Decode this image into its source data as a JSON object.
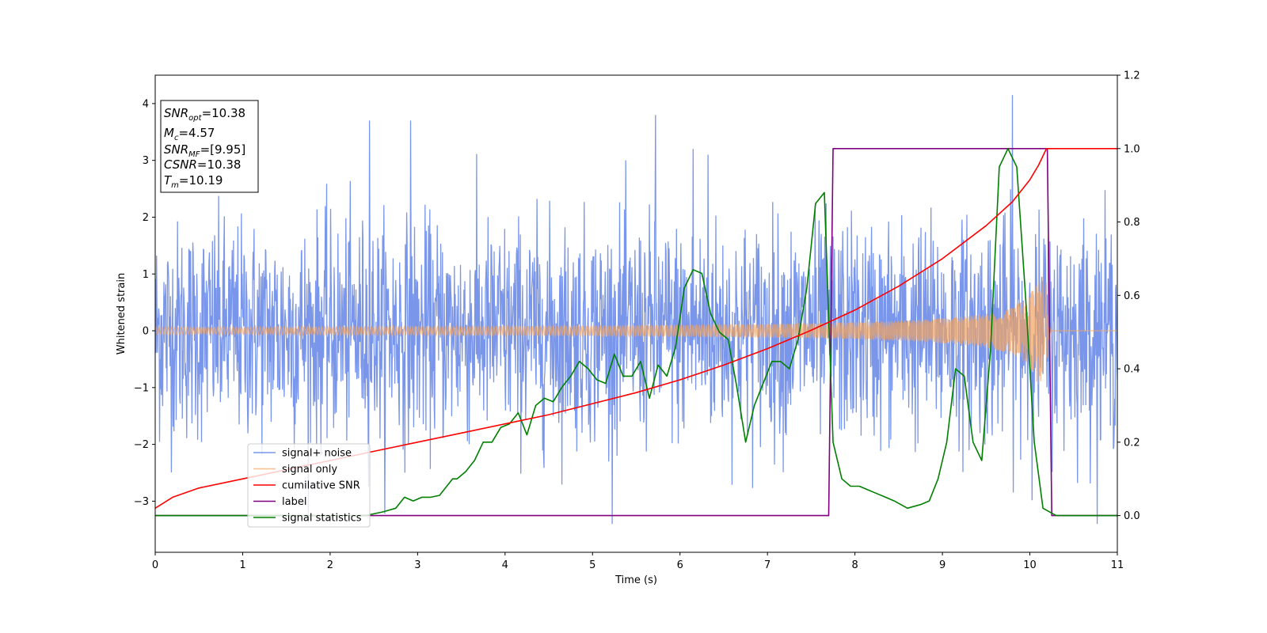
{
  "chart_data": {
    "type": "line",
    "title": "",
    "xlabel": "Time (s)",
    "ylabel": "Whitened strain",
    "xlim": [
      0,
      11
    ],
    "ylim": [
      -3.9,
      4.5
    ],
    "y2lim": [
      -0.1,
      1.2
    ],
    "xticks": [
      "0",
      "1",
      "2",
      "3",
      "4",
      "5",
      "6",
      "7",
      "8",
      "9",
      "10",
      "11"
    ],
    "yticks": [
      "−3",
      "−2",
      "−1",
      "0",
      "1",
      "2",
      "3",
      "4"
    ],
    "y2ticks": [
      "0.0",
      "0.2",
      "0.4",
      "0.6",
      "0.8",
      "1.0",
      "1.2"
    ],
    "grid": false,
    "legend_position": "lower-left",
    "annotation": {
      "lines": [
        {
          "main": "SNR",
          "sub": "opt",
          "value": "=10.38"
        },
        {
          "main": "M",
          "sub": "c",
          "value": "=4.57"
        },
        {
          "main": "SNR",
          "sub": "MF",
          "value": "=[9.95]"
        },
        {
          "main": "CSNR",
          "sub": "",
          "value": "=10.38"
        },
        {
          "main": "T",
          "sub": "m",
          "value": "=10.19"
        }
      ]
    },
    "series": [
      {
        "name": "signal+ noise",
        "axis": "left",
        "color": "#4169e1",
        "style": "noise",
        "sigma": 1.0,
        "peak_times": [
          2.45,
          2.92,
          5.72,
          6.15,
          6.32,
          9.8
        ],
        "peak_values": [
          3.7,
          3.7,
          3.8,
          3.2,
          3.1,
          4.15
        ]
      },
      {
        "name": "signal only",
        "axis": "left",
        "color": "#f4a460",
        "style": "chirp",
        "merger_time": 10.19,
        "start_amplitude": 0.06,
        "peak_amplitude": 0.95
      },
      {
        "name": "cumilative SNR",
        "axis": "right",
        "color": "#ff0000",
        "x": [
          0,
          0.2,
          0.5,
          1,
          1.5,
          2,
          2.5,
          3,
          3.5,
          4,
          4.5,
          5,
          5.5,
          6,
          6.5,
          7,
          7.5,
          8,
          8.5,
          9,
          9.5,
          9.8,
          10,
          10.1,
          10.19,
          11
        ],
        "y": [
          0.02,
          0.05,
          0.075,
          0.1,
          0.125,
          0.15,
          0.175,
          0.2,
          0.225,
          0.25,
          0.275,
          0.305,
          0.335,
          0.37,
          0.41,
          0.455,
          0.505,
          0.56,
          0.625,
          0.7,
          0.79,
          0.855,
          0.915,
          0.955,
          1.0,
          1.0
        ]
      },
      {
        "name": "label",
        "axis": "right",
        "color": "#800080",
        "x": [
          0,
          7.7,
          7.75,
          10.2,
          10.25,
          11
        ],
        "y": [
          0,
          0,
          1,
          1,
          0,
          0
        ]
      },
      {
        "name": "signal statistics",
        "axis": "right",
        "color": "#008000",
        "x": [
          0,
          2.4,
          2.6,
          2.75,
          2.85,
          2.95,
          3.05,
          3.15,
          3.25,
          3.4,
          3.45,
          3.55,
          3.65,
          3.75,
          3.85,
          3.95,
          4.05,
          4.15,
          4.25,
          4.35,
          4.45,
          4.55,
          4.65,
          4.75,
          4.85,
          4.95,
          5.05,
          5.15,
          5.25,
          5.35,
          5.45,
          5.55,
          5.65,
          5.75,
          5.85,
          5.95,
          6.05,
          6.15,
          6.25,
          6.35,
          6.45,
          6.55,
          6.65,
          6.75,
          6.85,
          6.95,
          7.05,
          7.15,
          7.25,
          7.35,
          7.45,
          7.55,
          7.65,
          7.75,
          7.85,
          7.95,
          8.05,
          8.15,
          8.25,
          8.35,
          8.45,
          8.6,
          8.75,
          8.85,
          8.95,
          9.05,
          9.15,
          9.25,
          9.35,
          9.45,
          9.55,
          9.65,
          9.75,
          9.85,
          9.95,
          10.05,
          10.15,
          10.3,
          11
        ],
        "y": [
          0.0,
          0.0,
          0.01,
          0.02,
          0.05,
          0.04,
          0.05,
          0.05,
          0.055,
          0.1,
          0.1,
          0.12,
          0.15,
          0.2,
          0.2,
          0.24,
          0.25,
          0.28,
          0.22,
          0.3,
          0.32,
          0.31,
          0.35,
          0.38,
          0.42,
          0.4,
          0.37,
          0.36,
          0.44,
          0.38,
          0.38,
          0.42,
          0.32,
          0.41,
          0.38,
          0.46,
          0.62,
          0.67,
          0.66,
          0.55,
          0.5,
          0.48,
          0.35,
          0.2,
          0.3,
          0.36,
          0.42,
          0.42,
          0.4,
          0.48,
          0.62,
          0.85,
          0.88,
          0.2,
          0.1,
          0.08,
          0.08,
          0.07,
          0.06,
          0.05,
          0.04,
          0.02,
          0.03,
          0.04,
          0.1,
          0.2,
          0.4,
          0.38,
          0.2,
          0.15,
          0.45,
          0.95,
          1.0,
          0.95,
          0.6,
          0.2,
          0.02,
          0.0,
          0.0
        ]
      }
    ]
  }
}
